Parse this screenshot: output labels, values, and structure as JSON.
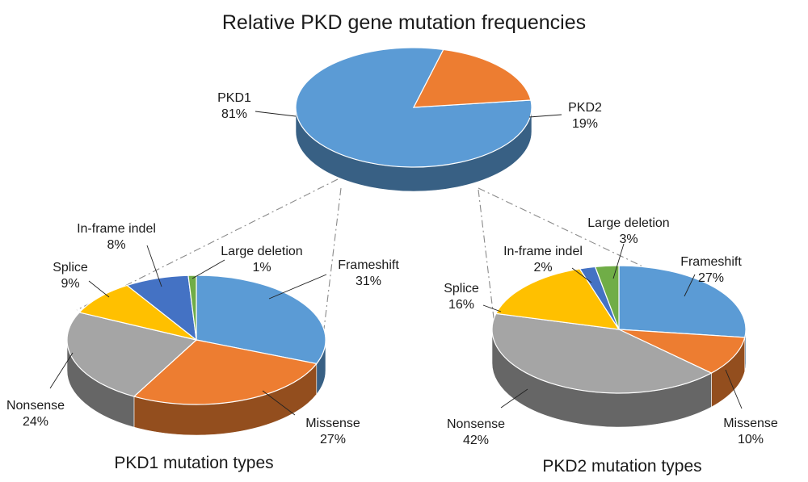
{
  "colors": {
    "frameshift": "#5b9bd5",
    "missense": "#ed7d31",
    "nonsense": "#a5a5a5",
    "splice": "#ffc000",
    "inframe": "#4472c4",
    "largedel": "#70ad47"
  },
  "chart_data": [
    {
      "type": "pie",
      "title": "Relative PKD gene mutation frequencies",
      "labels": [
        "PKD1",
        "PKD2"
      ],
      "values": [
        81,
        19
      ],
      "value_labels": [
        "81%",
        "19%"
      ]
    },
    {
      "type": "pie",
      "title": "PKD1 mutation types",
      "labels": [
        "Frameshift",
        "Missense",
        "Nonsense",
        "Splice",
        "In-frame indel",
        "Large deletion"
      ],
      "values": [
        31,
        27,
        24,
        9,
        8,
        1
      ],
      "value_labels": [
        "31%",
        "27%",
        "24%",
        "9%",
        "8%",
        "1%"
      ]
    },
    {
      "type": "pie",
      "title": "PKD2 mutation types",
      "labels": [
        "Frameshift",
        "Missense",
        "Nonsense",
        "Splice",
        "In-frame indel",
        "Large deletion"
      ],
      "values": [
        27,
        10,
        42,
        16,
        2,
        3
      ],
      "value_labels": [
        "27%",
        "10%",
        "42%",
        "16%",
        "2%",
        "3%"
      ]
    }
  ]
}
